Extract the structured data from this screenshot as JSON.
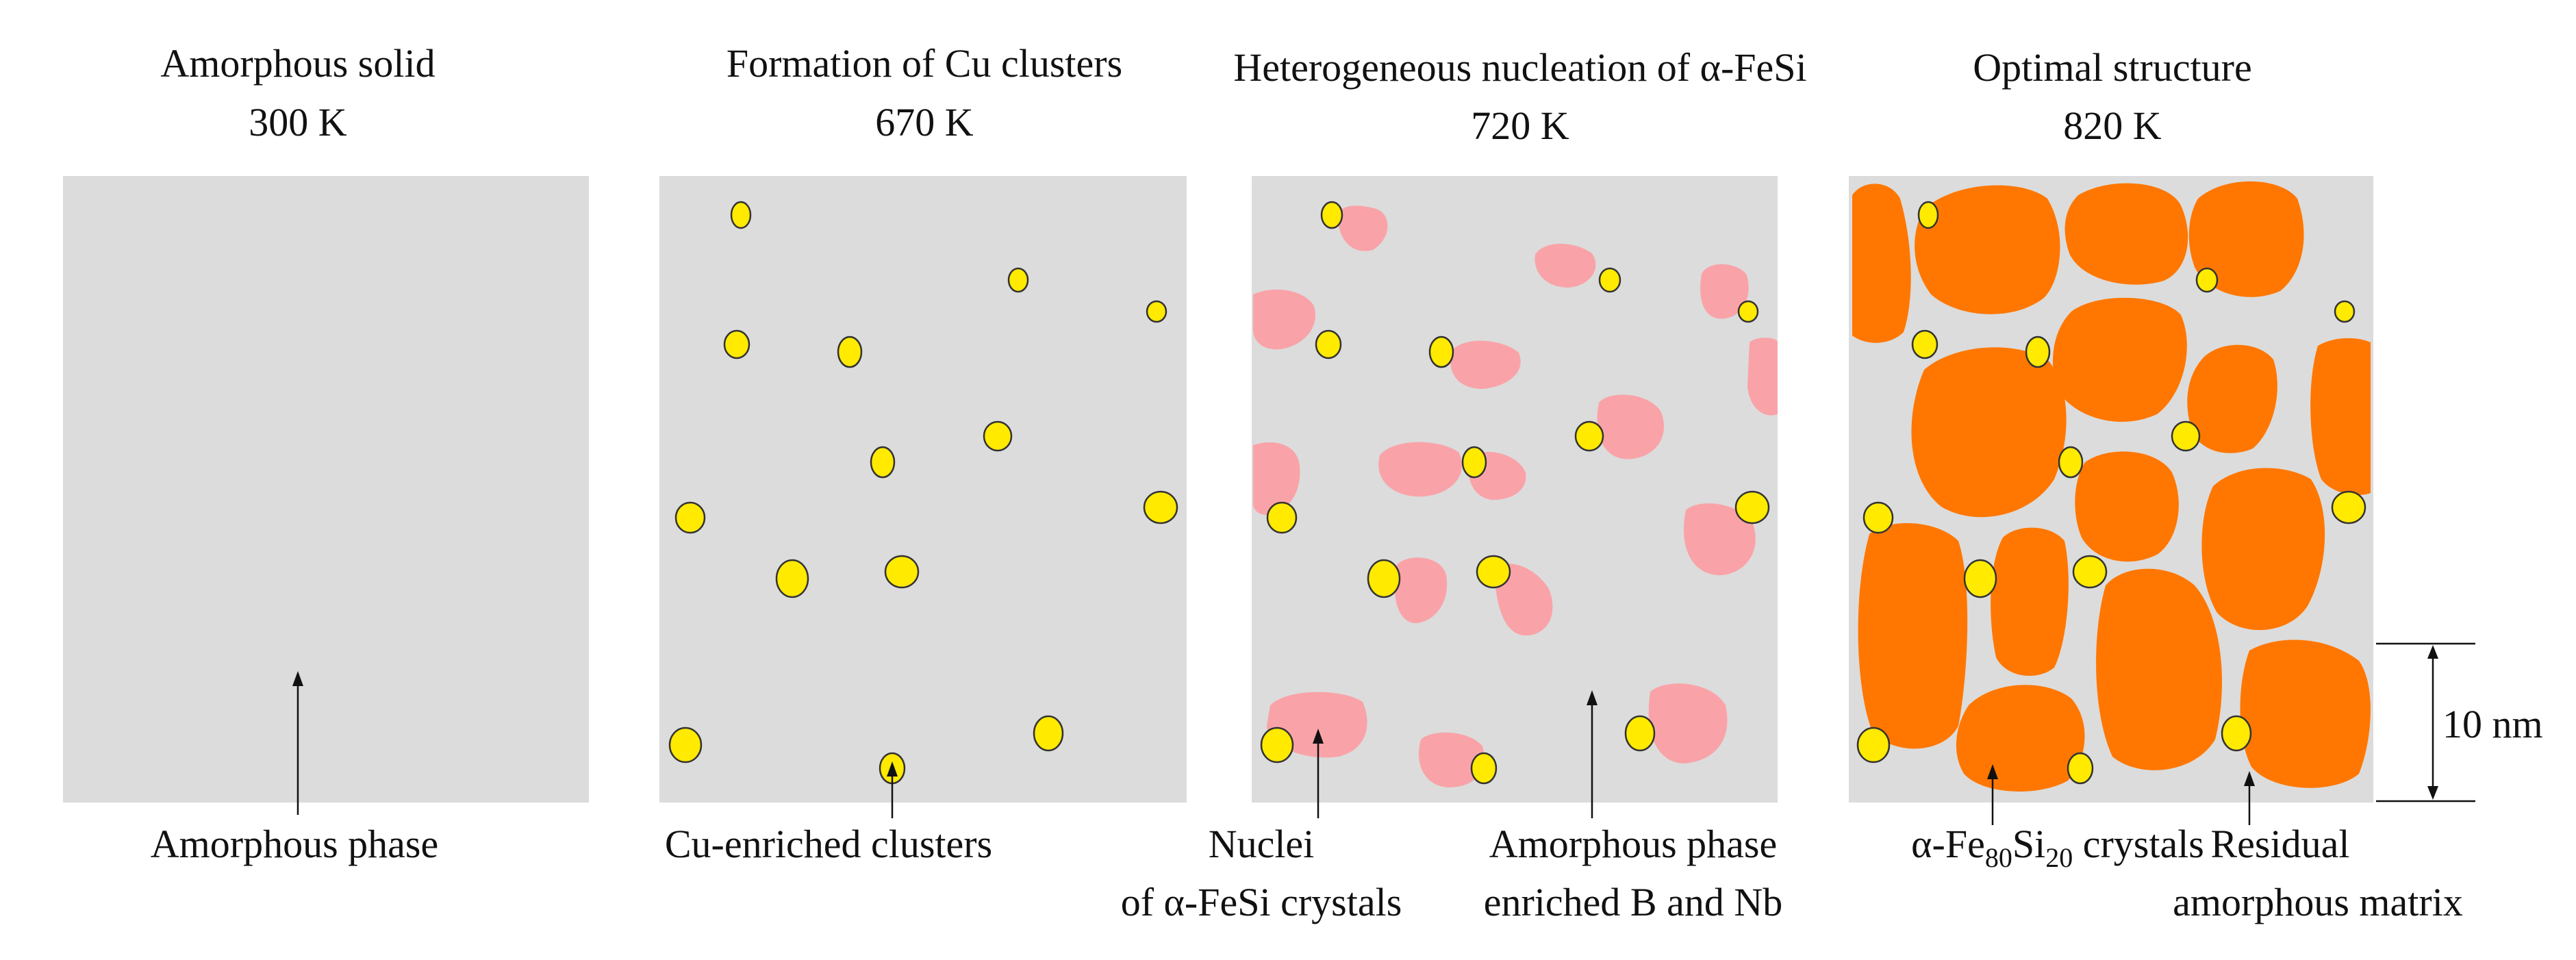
{
  "stages": [
    {
      "title": "Amorphous solid",
      "temperature": "300 K"
    },
    {
      "title": "Formation of Cu clusters",
      "temperature": "670 K"
    },
    {
      "title": "Heterogeneous nucleation of α-FeSi",
      "temperature": "720 K"
    },
    {
      "title": "Optimal structure",
      "temperature": "820 K"
    }
  ],
  "labels": {
    "amorphous_phase": "Amorphous phase",
    "cu_clusters": "Cu-enriched clusters",
    "nuclei_line1": "Nuclei",
    "nuclei_line2": "of α-FeSi crystals",
    "amorphous_enriched_line1": "Amorphous phase",
    "amorphous_enriched_line2": "enriched B and Nb",
    "crystals": {
      "prefix": "α-Fe",
      "sub1": "80",
      "mid": "Si",
      "sub2": "20",
      "suffix": " crystals"
    },
    "residual_line1": "Residual",
    "residual_line2": "amorphous matrix",
    "scale_bar": "10 nm"
  },
  "colors": {
    "panel": "#dcdcdc",
    "cu_cluster": "#ffea00",
    "nucleus": "#f9a3a8",
    "crystal": "#ff7700"
  }
}
